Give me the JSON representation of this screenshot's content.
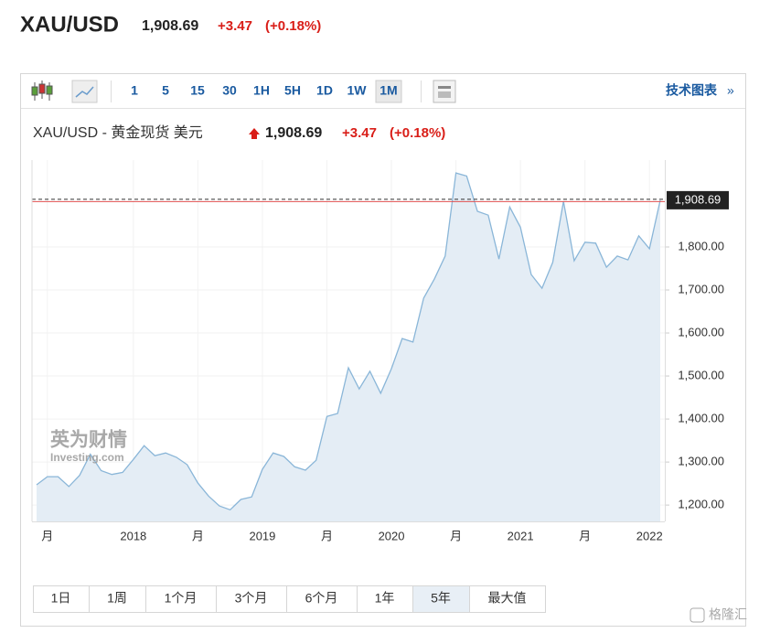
{
  "header": {
    "symbol": "XAU/USD",
    "price": "1,908.69",
    "change": "+3.47",
    "change_pct": "(+0.18%)"
  },
  "toolbar": {
    "intervals": [
      "1",
      "5",
      "15",
      "30",
      "1H",
      "5H",
      "1D",
      "1W",
      "1M"
    ],
    "active_interval": "1M",
    "link": "技术图表",
    "link_arrow": "»"
  },
  "chart_title": {
    "name": "XAU/USD - 黄金现货 美元",
    "price": "1,908.69",
    "change": "+3.47",
    "change_pct": "(+0.18%)"
  },
  "watermark": {
    "brand": "英为财情",
    "site": "Investing.com"
  },
  "ranges": {
    "buttons": [
      "1日",
      "1周",
      "1个月",
      "3个月",
      "6个月",
      "1年",
      "5年",
      "最大值"
    ],
    "active": "5年"
  },
  "logo": "格隆汇",
  "chart_data": {
    "type": "area",
    "values": [
      1247,
      1266,
      1266,
      1243,
      1269,
      1318,
      1280,
      1271,
      1276,
      1306,
      1338,
      1315,
      1321,
      1311,
      1294,
      1251,
      1221,
      1198,
      1189,
      1213,
      1219,
      1283,
      1321,
      1313,
      1289,
      1281,
      1304,
      1406,
      1413,
      1519,
      1470,
      1511,
      1460,
      1517,
      1587,
      1579,
      1681,
      1726,
      1779,
      1972,
      1965,
      1883,
      1874,
      1772,
      1893,
      1846,
      1736,
      1704,
      1764,
      1906,
      1768,
      1811,
      1809,
      1753,
      1779,
      1770,
      1826,
      1796,
      1908.69
    ],
    "color": "#8ab6d8",
    "fill": "#e4edf5",
    "xlim": [
      0,
      58
    ],
    "xticks": [
      {
        "value": 1,
        "label": "月"
      },
      {
        "value": 9,
        "label": "2018"
      },
      {
        "value": 15,
        "label": "月"
      },
      {
        "value": 21,
        "label": "2019"
      },
      {
        "value": 27,
        "label": "月"
      },
      {
        "value": 33,
        "label": "2020"
      },
      {
        "value": 39,
        "label": "月"
      },
      {
        "value": 45,
        "label": "2021"
      },
      {
        "value": 51,
        "label": "月"
      },
      {
        "value": 57,
        "label": "2022"
      }
    ],
    "ylim": [
      1162,
      2002
    ],
    "yticks": [
      {
        "value": 1200,
        "label": "1,200.00"
      },
      {
        "value": 1300,
        "label": "1,300.00"
      },
      {
        "value": 1400,
        "label": "1,400.00"
      },
      {
        "value": 1500,
        "label": "1,500.00"
      },
      {
        "value": 1600,
        "label": "1,600.00"
      },
      {
        "value": 1700,
        "label": "1,700.00"
      },
      {
        "value": 1800,
        "label": "1,800.00"
      }
    ],
    "last_price": {
      "value": 1908.69,
      "label": "1,908.69"
    },
    "grid": true
  }
}
